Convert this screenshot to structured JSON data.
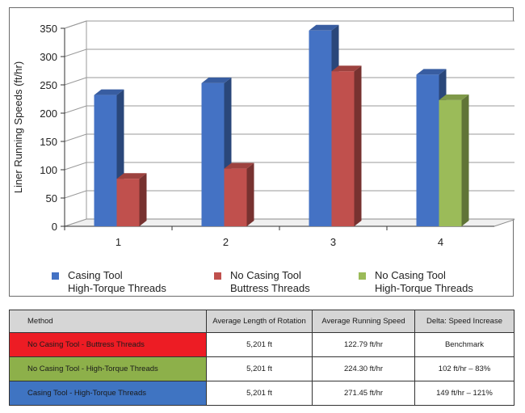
{
  "chart_data": {
    "type": "bar",
    "categories": [
      "1",
      "2",
      "3",
      "4"
    ],
    "ylabel": "Liner Running Speeds (ft/hr)",
    "ylim": [
      0,
      350
    ],
    "yticks": [
      0,
      50,
      100,
      150,
      200,
      250,
      300,
      350
    ],
    "grid": true,
    "legend_position": "bottom",
    "bars": [
      {
        "category": "1",
        "series": "Casing Tool High-Torque Threads",
        "value": 232
      },
      {
        "category": "1",
        "series": "No Casing Tool Buttress Threads",
        "value": 84
      },
      {
        "category": "2",
        "series": "Casing Tool High-Torque Threads",
        "value": 253
      },
      {
        "category": "2",
        "series": "No Casing Tool Buttress Threads",
        "value": 102
      },
      {
        "category": "3",
        "series": "Casing Tool High-Torque Threads",
        "value": 346
      },
      {
        "category": "3",
        "series": "No Casing Tool Buttress Threads",
        "value": 274
      },
      {
        "category": "4",
        "series": "Casing Tool High-Torque Threads",
        "value": 268
      },
      {
        "category": "4",
        "series": "No Casing Tool High-Torque Threads",
        "value": 223
      }
    ],
    "series": [
      {
        "name_line1": "Casing Tool",
        "name_line2": "High-Torque Threads",
        "color": "#4472c4"
      },
      {
        "name_line1": "No Casing Tool",
        "name_line2": "Buttress Threads",
        "color": "#c0504d"
      },
      {
        "name_line1": "No Casing Tool",
        "name_line2": "High-Torque Threads",
        "color": "#9bbb59"
      }
    ]
  },
  "table": {
    "headers": [
      "Method",
      "Average Length of Rotation",
      "Average Running Speed",
      "Delta: Speed Increase"
    ],
    "rows": [
      {
        "method": "No Casing Tool - Buttress Threads",
        "color": "#ed1c24",
        "length": "5,201 ft",
        "speed": "122.79 ft/hr",
        "delta": "Benchmark"
      },
      {
        "method": "No Casing Tool - High-Torque Threads",
        "color": "#8db04a",
        "length": "5,201 ft",
        "speed": "224.30 ft/hr",
        "delta": "102 ft/hr – 83%"
      },
      {
        "method": "Casing Tool - High-Torque Threads",
        "color": "#3f74c2",
        "length": "5,201 ft",
        "speed": "271.45 ft/hr",
        "delta": "149 ft/hr – 121%"
      }
    ]
  }
}
